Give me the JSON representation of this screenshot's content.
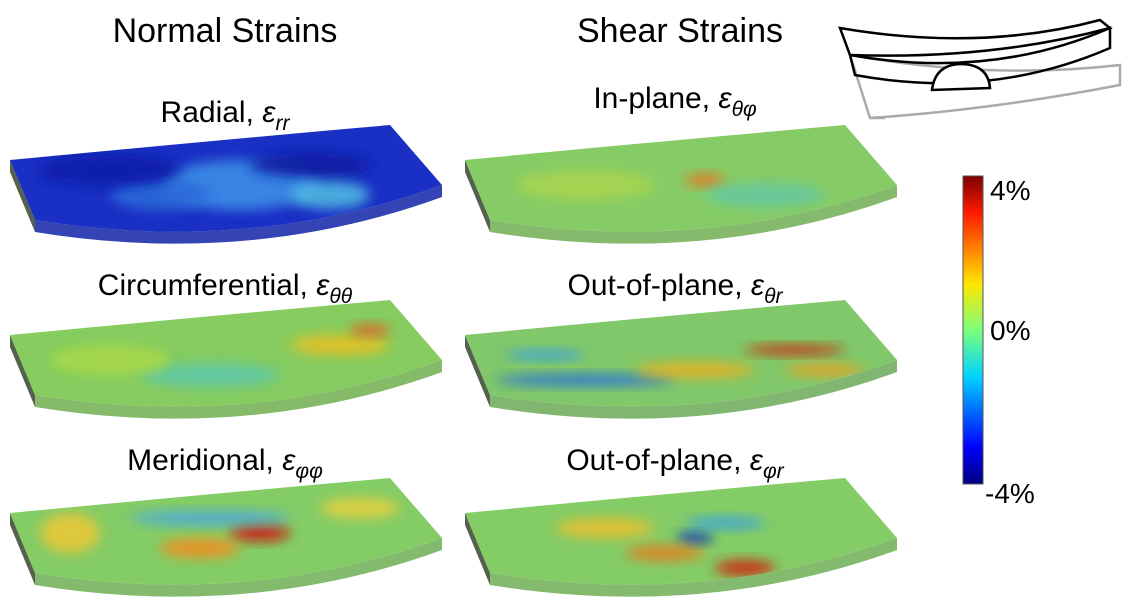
{
  "headers": {
    "normal": "Normal Strains",
    "shear": "Shear Strains"
  },
  "panels": [
    {
      "label": "Radial,",
      "symbol": "ε",
      "subscript": "rr"
    },
    {
      "label": "Circumferential,",
      "symbol": "ε",
      "subscript": "θθ"
    },
    {
      "label": "Meridional,",
      "symbol": "ε",
      "subscript": "φφ"
    },
    {
      "label": "In-plane,",
      "symbol": "ε",
      "subscript": "θφ"
    },
    {
      "label": "Out-of-plane,",
      "symbol": "ε",
      "subscript": "θr"
    },
    {
      "label": "Out-of-plane,",
      "symbol": "ε",
      "subscript": "φr"
    }
  ],
  "colorbar": {
    "max": "4%",
    "mid": "0%",
    "min": "-4%"
  }
}
